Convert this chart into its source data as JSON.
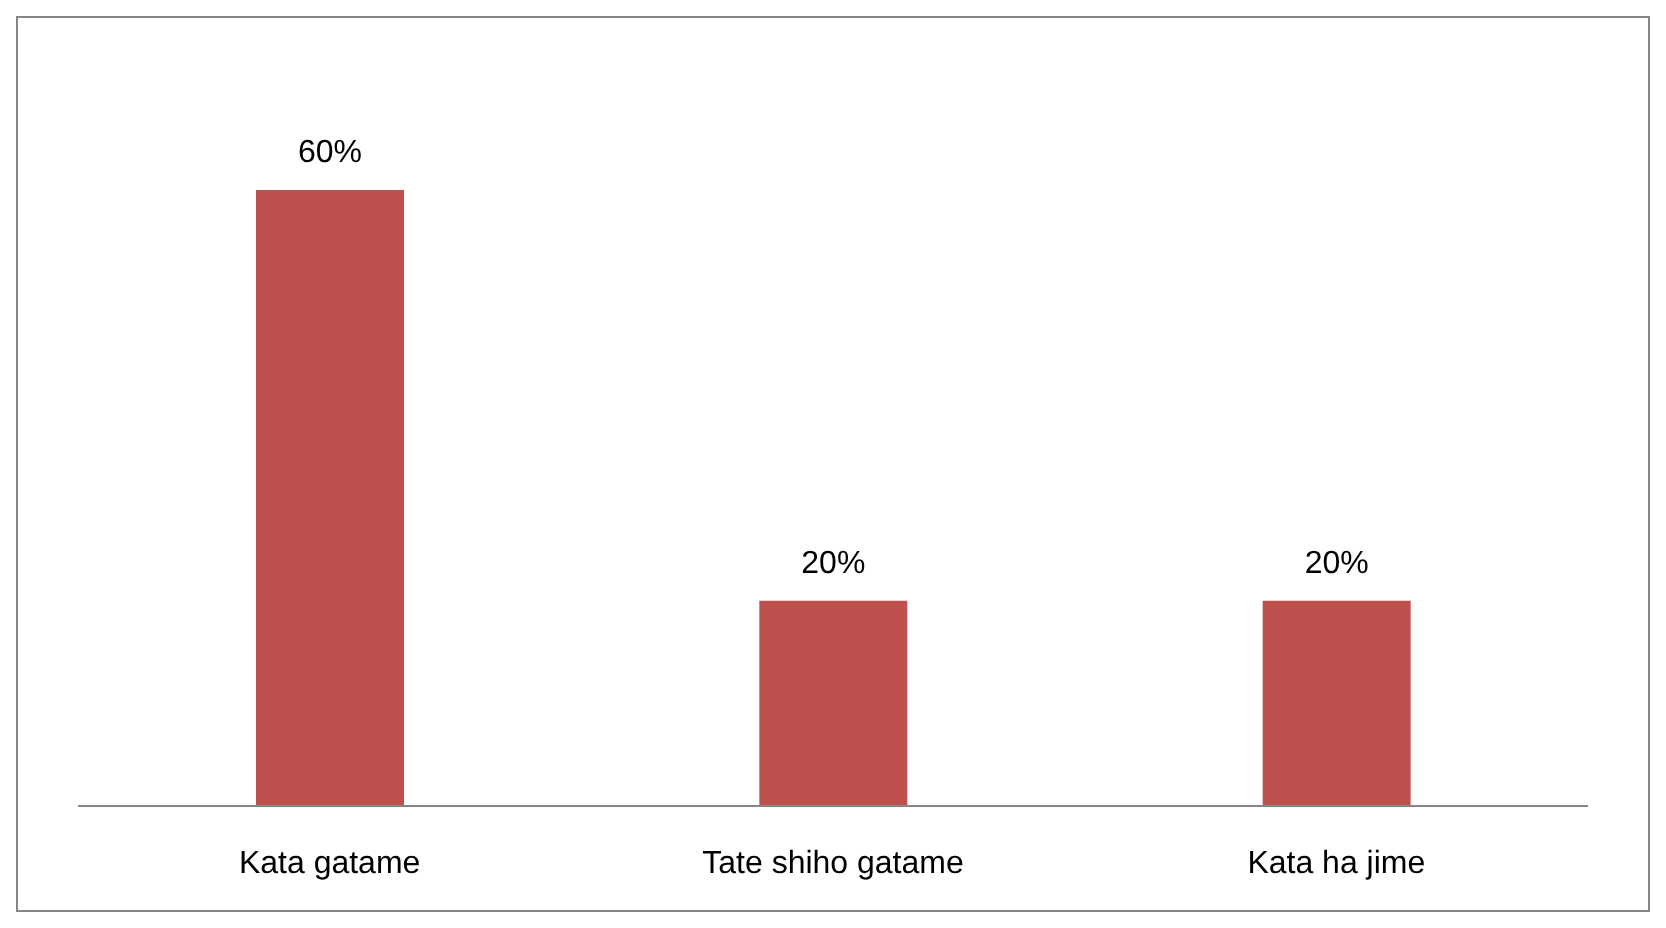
{
  "chart_data": {
    "type": "bar",
    "categories": [
      "Kata gatame",
      "Tate shiho gatame",
      "Kata ha jime"
    ],
    "values": [
      60,
      20,
      20
    ],
    "value_labels": [
      "60%",
      "20%",
      "20%"
    ],
    "color": "#c0504d",
    "grid": false,
    "legend": false
  }
}
